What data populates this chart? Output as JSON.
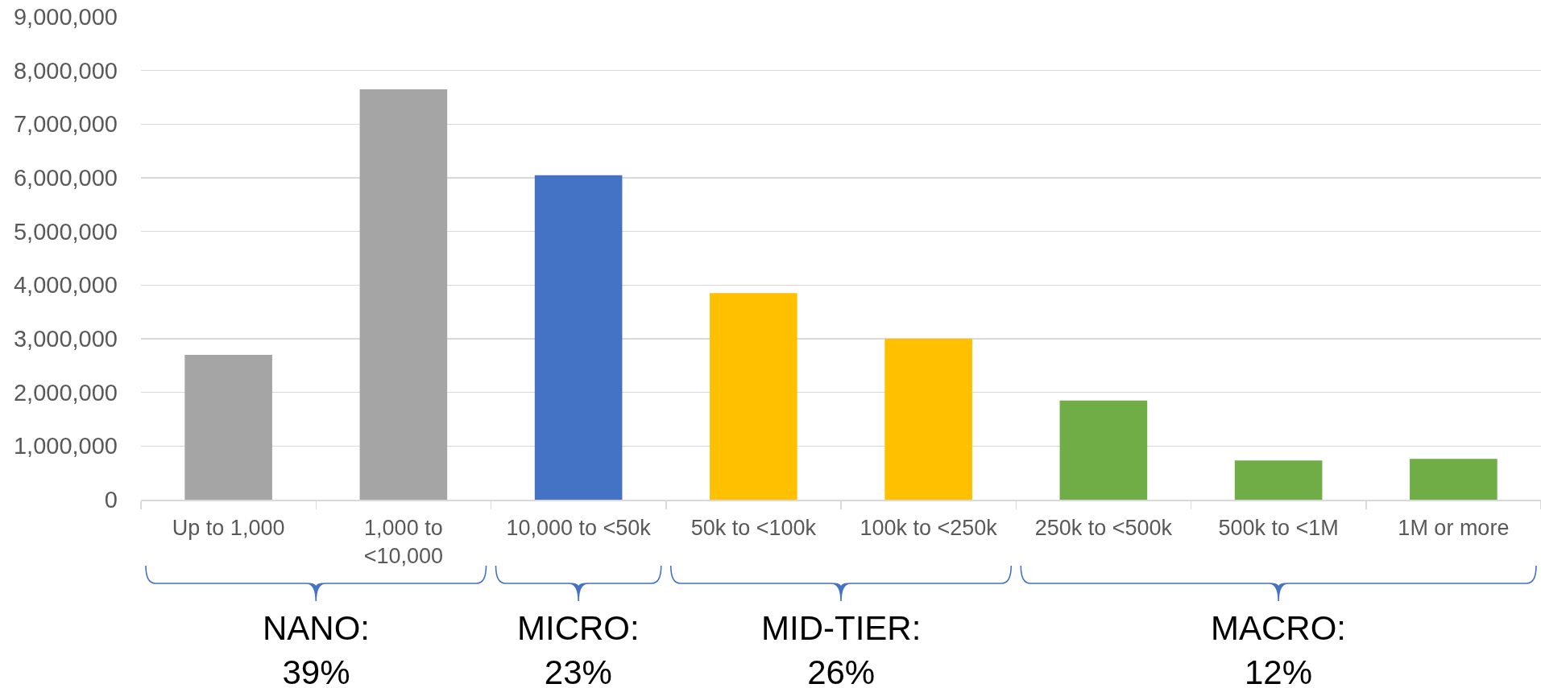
{
  "chart_data": {
    "type": "bar",
    "categories": [
      "Up to 1,000",
      "1,000 to\n<10,000",
      "10,000 to <50k",
      "50k to <100k",
      "100k to <250k",
      "250k to <500k",
      "500k to <1M",
      "1M or more"
    ],
    "values": [
      2700000,
      7650000,
      6050000,
      3850000,
      3000000,
      1850000,
      730000,
      760000
    ],
    "colors": [
      "#a5a5a5",
      "#a5a5a5",
      "#4472c4",
      "#ffc000",
      "#ffc000",
      "#70ad47",
      "#70ad47",
      "#70ad47"
    ],
    "ylim": [
      0,
      9000000
    ],
    "yticks": [
      0,
      {
        "value": 1000000,
        "label": "1,000,000"
      },
      {
        "value": 2000000,
        "label": "2,000,000"
      },
      {
        "value": 3000000,
        "label": "3,000,000"
      },
      {
        "value": 4000000,
        "label": "4,000,000"
      },
      {
        "value": 5000000,
        "label": "5,000,000"
      },
      {
        "value": 6000000,
        "label": "6,000,000"
      },
      {
        "value": 7000000,
        "label": "7,000,000"
      },
      {
        "value": 8000000,
        "label": "8,000,000"
      },
      {
        "value": 9000000,
        "label": "9,000,000"
      }
    ],
    "grid": "y",
    "annotations": [
      "NANO:\n39%",
      "MICRO:\n23%",
      "MID-TIER:\n26%",
      "MACRO:\n12%"
    ]
  }
}
